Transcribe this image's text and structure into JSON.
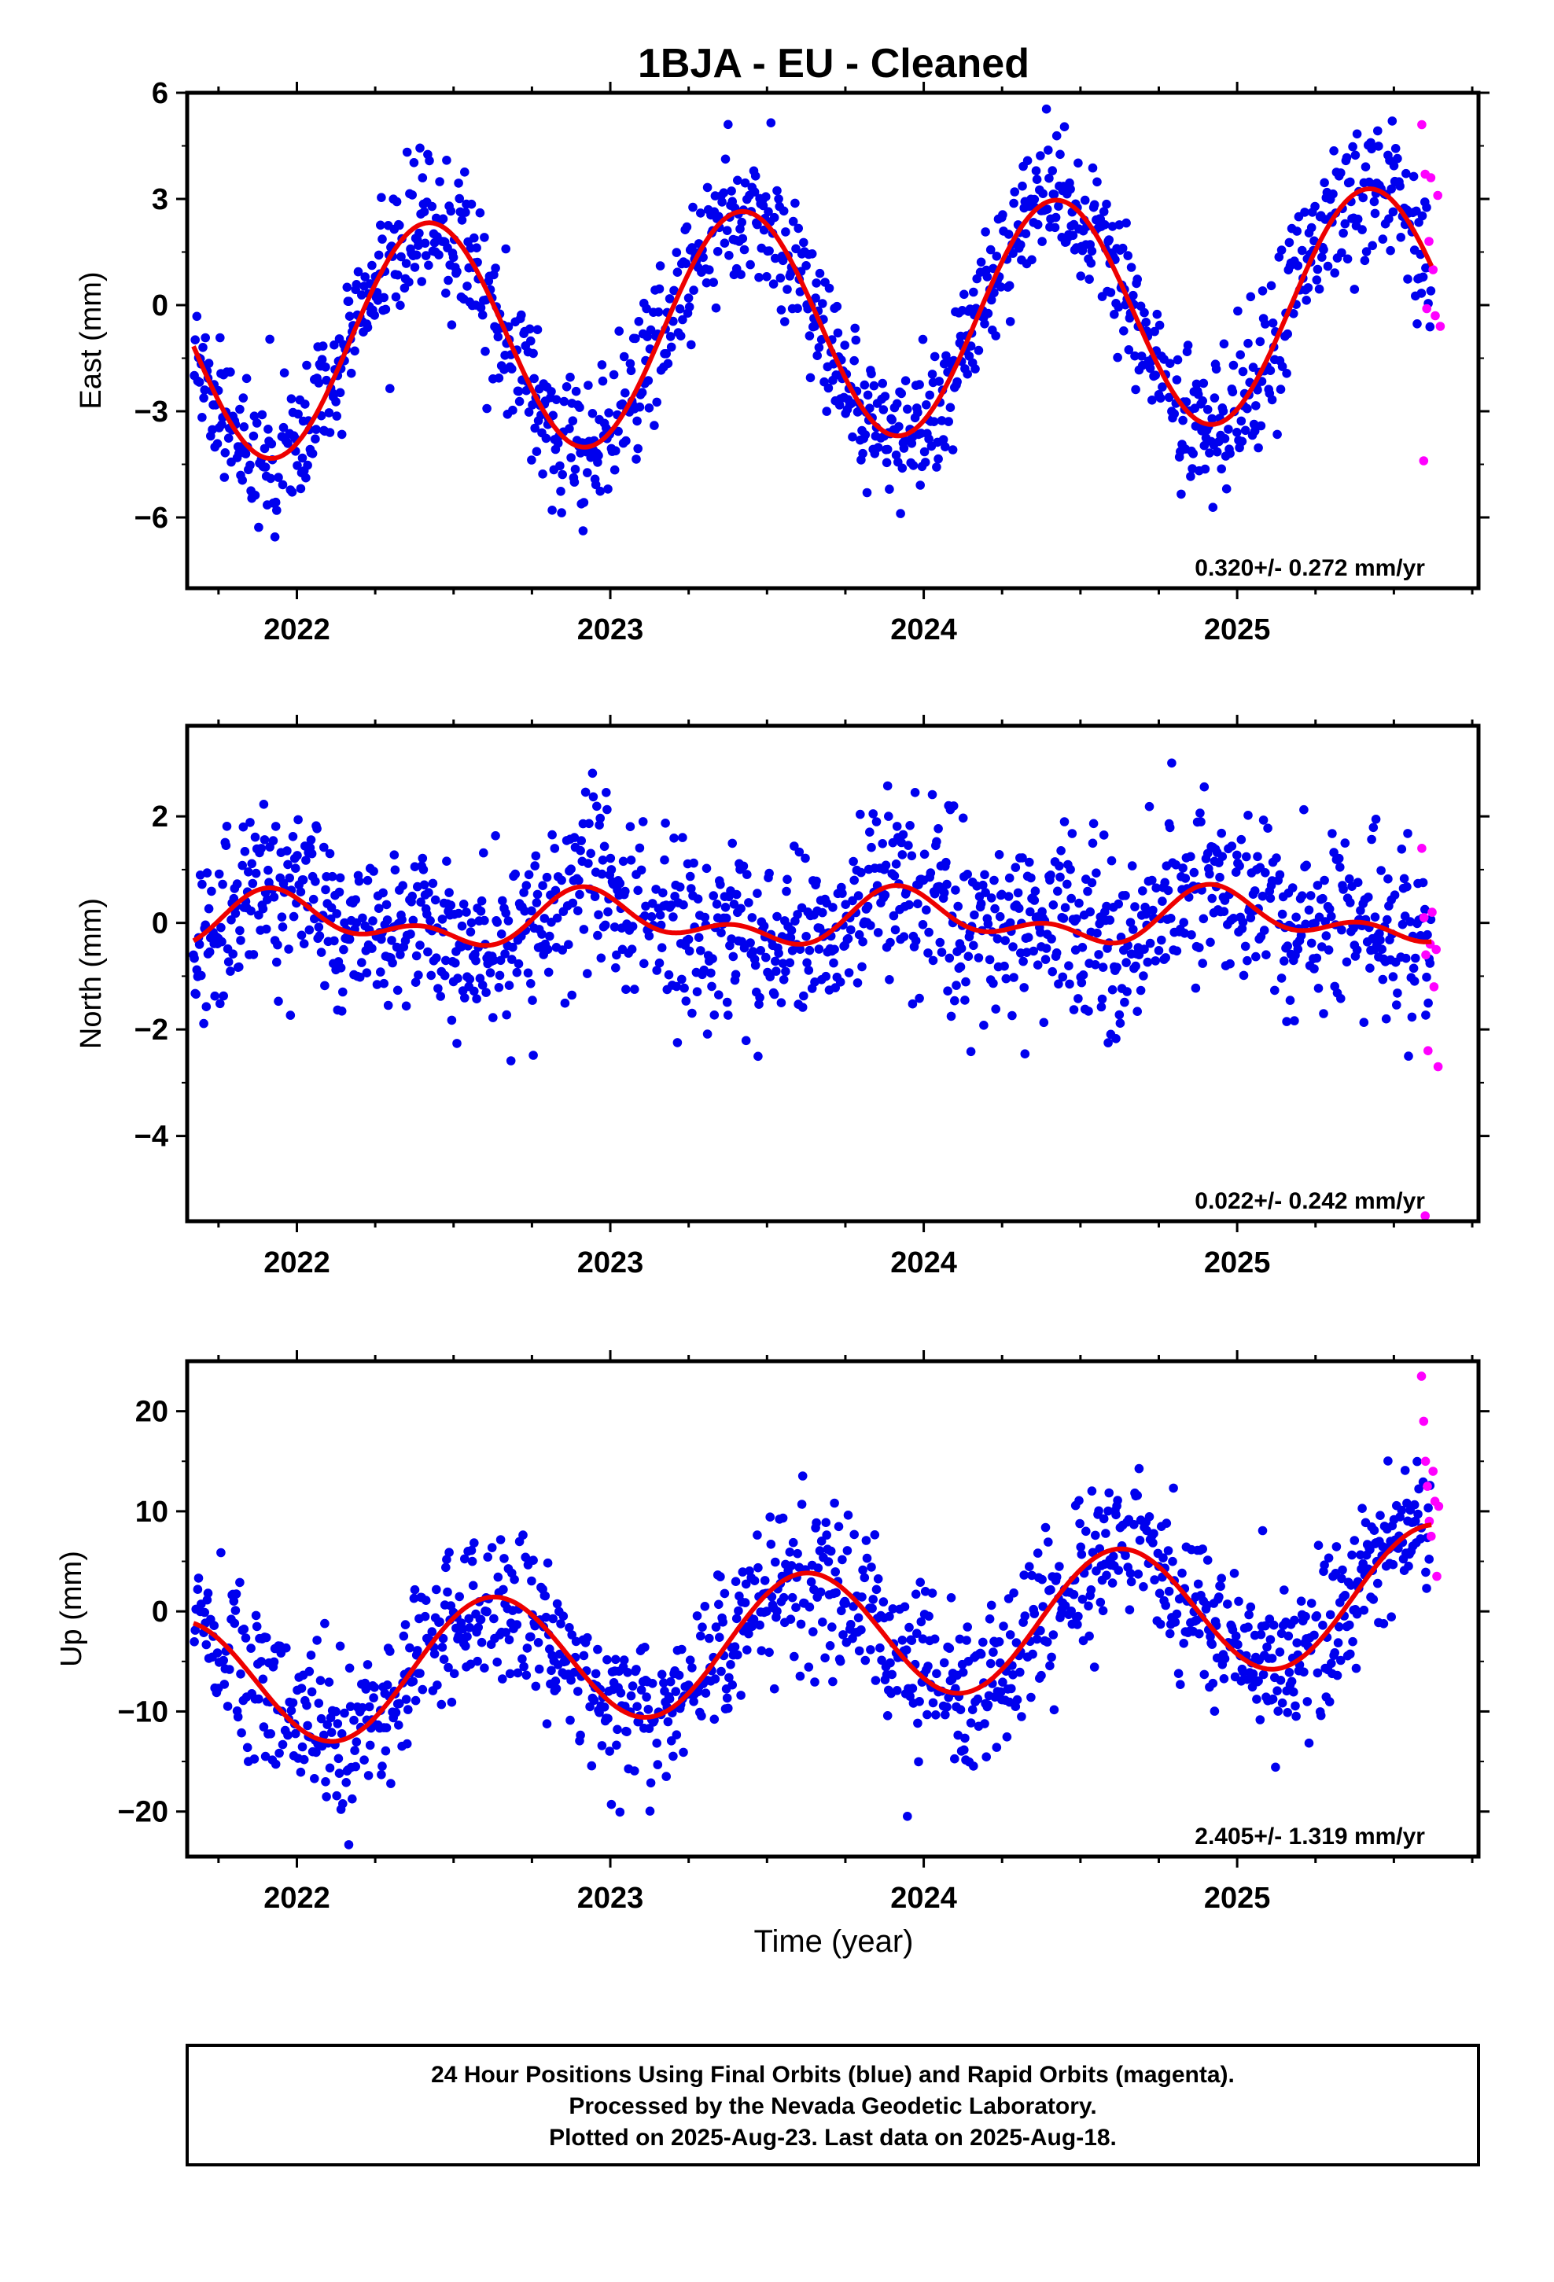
{
  "chart_data": {
    "type": "scatter",
    "title": "1BJA  - EU - Cleaned",
    "xlabel": "Time (year)",
    "x_ticks": [
      2022,
      2023,
      2024,
      2025
    ],
    "xlim": [
      2021.65,
      2025.77
    ],
    "colors": {
      "final": "#0000ee",
      "rapid": "#ff00ff",
      "model": "#ee0000"
    },
    "panels": [
      {
        "ylabel": "East (mm)",
        "yticks": [
          6,
          3,
          0,
          -3,
          -6
        ],
        "ytick_labels": [
          "6",
          "3",
          "0",
          "−3",
          "−6"
        ],
        "ylim": [
          -8,
          6
        ],
        "rate_text": "0.320+/- 0.272 mm/yr",
        "model": {
          "offset": -0.53,
          "rate": 0.32,
          "annual_amp": 3.25,
          "annual_phase_year": 2022.42,
          "semi_amp": 0.0,
          "semi_phase_year": 2022.0,
          "fit_start": 2021.67,
          "fit_end": 2025.62
        },
        "noise": 0.95,
        "rapid_points": [
          [
            2025.589,
            5.1
          ],
          [
            2025.6,
            3.7
          ],
          [
            2025.605,
            -0.1
          ],
          [
            2025.612,
            1.8
          ],
          [
            2025.618,
            3.6
          ],
          [
            2025.625,
            1.0
          ],
          [
            2025.632,
            -0.3
          ],
          [
            2025.64,
            3.1
          ],
          [
            2025.595,
            -4.4
          ],
          [
            2025.648,
            -0.6
          ]
        ]
      },
      {
        "ylabel": "North (mm)",
        "yticks": [
          2,
          0,
          -2,
          -4
        ],
        "ytick_labels": [
          "2",
          "0",
          "−2",
          "−4"
        ],
        "ylim": [
          -5.6,
          3.7
        ],
        "rate_text": "0.022+/- 0.242 mm/yr",
        "model": {
          "offset": 0.05,
          "rate": 0.022,
          "annual_amp": 0.38,
          "annual_phase_year": 2021.95,
          "semi_amp": 0.28,
          "semi_phase_year": 2021.9,
          "fit_start": 2021.67,
          "fit_end": 2025.62
        },
        "noise": 0.85,
        "rapid_points": [
          [
            2025.589,
            1.4
          ],
          [
            2025.596,
            0.1
          ],
          [
            2025.602,
            -0.6
          ],
          [
            2025.609,
            -2.4
          ],
          [
            2025.616,
            -0.4
          ],
          [
            2025.622,
            0.2
          ],
          [
            2025.628,
            -1.2
          ],
          [
            2025.635,
            -0.5
          ],
          [
            2025.641,
            -2.7
          ],
          [
            2025.6,
            -5.5
          ]
        ]
      },
      {
        "ylabel": "Up (mm)",
        "yticks": [
          20,
          10,
          0,
          -10,
          -20
        ],
        "ytick_labels": [
          "20",
          "10",
          "0",
          "−10",
          "−20"
        ],
        "ylim": [
          -24.5,
          25
        ],
        "rate_text": "2.405+/- 1.319 mm/yr",
        "model": {
          "offset": -2.7,
          "rate": 2.405,
          "annual_amp": 6.6,
          "annual_phase_year": 2022.62,
          "semi_amp": 0.0,
          "semi_phase_year": 2022.0,
          "fit_start": 2021.67,
          "fit_end": 2025.62
        },
        "noise": 4.0,
        "rapid_points": [
          [
            2025.588,
            23.5
          ],
          [
            2025.595,
            19.0
          ],
          [
            2025.601,
            15.0
          ],
          [
            2025.607,
            12.5
          ],
          [
            2025.613,
            9.0
          ],
          [
            2025.619,
            7.5
          ],
          [
            2025.625,
            14.0
          ],
          [
            2025.631,
            11.0
          ],
          [
            2025.637,
            3.5
          ],
          [
            2025.643,
            10.5
          ]
        ]
      }
    ],
    "legend": "24 Hour Positions Using Final Orbits (blue) and Rapid Orbits (magenta).",
    "caption": [
      "24 Hour Positions Using Final Orbits (blue) and Rapid Orbits (magenta).",
      "Processed by the Nevada Geodetic Laboratory.",
      "Plotted on 2025-Aug-23. Last data on 2025-Aug-18."
    ]
  }
}
